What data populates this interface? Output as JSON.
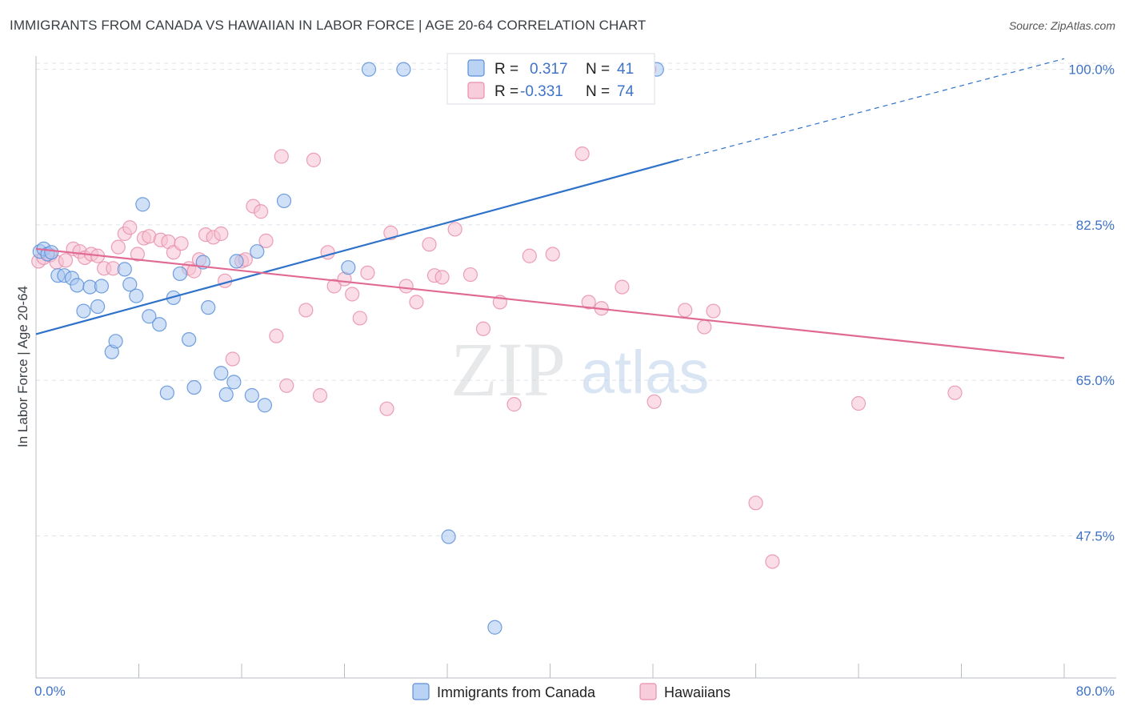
{
  "header": {
    "title": "IMMIGRANTS FROM CANADA VS HAWAIIAN IN LABOR FORCE | AGE 20-64 CORRELATION CHART",
    "source": "Source: ZipAtlas.com"
  },
  "watermark": {
    "zip": "ZIP",
    "atlas": "atlas"
  },
  "colors": {
    "blue_fill": "#a9c7f0",
    "blue_stroke": "#5b8fd8",
    "blue_line": "#2f72c9",
    "pink_fill": "#f6c1d2",
    "pink_stroke": "#e88fac",
    "pink_line": "#e06a93",
    "tick_text": "#3f73c7",
    "grid": "#dde3ea"
  },
  "chart_data": {
    "type": "scatter",
    "title": "IMMIGRANTS FROM CANADA VS HAWAIIAN IN LABOR FORCE | AGE 20-64 CORRELATION CHART",
    "xlabel": "",
    "ylabel": "In Labor Force | Age 20-64",
    "xlim": [
      0,
      80
    ],
    "ylim": [
      31.5,
      101.5
    ],
    "x_tick_labels": [
      "0.0%",
      "80.0%"
    ],
    "y_ticks": [
      47.5,
      65.0,
      82.5,
      100.0
    ],
    "y_tick_labels": [
      "47.5%",
      "65.0%",
      "82.5%",
      "100.0%"
    ],
    "grid": true,
    "legend_placement": "top-center",
    "stats": [
      {
        "r_label": "R =",
        "r_value": "0.317",
        "n_label": "N =",
        "n_value": "41"
      },
      {
        "r_label": "R =",
        "r_value": "-0.331",
        "n_label": "N =",
        "n_value": "74"
      }
    ],
    "series": [
      {
        "name": "Immigrants from Canada",
        "trend": {
          "x": [
            0,
            50
          ],
          "y": [
            70.2,
            89.8
          ],
          "dashed_to": [
            80,
            101.2
          ]
        },
        "points": [
          [
            0.3,
            79.5
          ],
          [
            0.6,
            79.8
          ],
          [
            0.9,
            79.2
          ],
          [
            1.2,
            79.4
          ],
          [
            1.7,
            76.8
          ],
          [
            2.2,
            76.8
          ],
          [
            2.8,
            76.5
          ],
          [
            3.2,
            75.7
          ],
          [
            3.7,
            72.8
          ],
          [
            4.2,
            75.5
          ],
          [
            4.8,
            73.3
          ],
          [
            5.1,
            75.6
          ],
          [
            5.9,
            68.2
          ],
          [
            6.2,
            69.4
          ],
          [
            6.9,
            77.5
          ],
          [
            7.3,
            75.8
          ],
          [
            7.8,
            74.5
          ],
          [
            8.3,
            84.8
          ],
          [
            8.8,
            72.2
          ],
          [
            9.6,
            71.3
          ],
          [
            10.2,
            63.6
          ],
          [
            10.7,
            74.3
          ],
          [
            11.2,
            77.0
          ],
          [
            11.9,
            69.6
          ],
          [
            12.3,
            64.2
          ],
          [
            13.0,
            78.3
          ],
          [
            13.4,
            73.2
          ],
          [
            14.4,
            65.8
          ],
          [
            14.8,
            63.4
          ],
          [
            15.4,
            64.8
          ],
          [
            15.6,
            78.4
          ],
          [
            16.8,
            63.3
          ],
          [
            17.2,
            79.5
          ],
          [
            17.8,
            62.2
          ],
          [
            19.3,
            85.2
          ],
          [
            24.3,
            77.7
          ],
          [
            25.9,
            100.0
          ],
          [
            28.6,
            100.0
          ],
          [
            32.1,
            47.4
          ],
          [
            35.7,
            37.2
          ],
          [
            48.3,
            100.0
          ]
        ]
      },
      {
        "name": "Hawaiians",
        "trend": {
          "x": [
            0,
            80
          ],
          "y": [
            79.8,
            67.5
          ]
        },
        "points": [
          [
            0.2,
            78.4
          ],
          [
            0.6,
            78.8
          ],
          [
            1.1,
            79.1
          ],
          [
            1.6,
            78.3
          ],
          [
            2.3,
            78.5
          ],
          [
            2.9,
            79.8
          ],
          [
            3.4,
            79.5
          ],
          [
            3.8,
            78.8
          ],
          [
            4.3,
            79.2
          ],
          [
            4.8,
            79.0
          ],
          [
            5.3,
            77.6
          ],
          [
            6.0,
            77.6
          ],
          [
            6.4,
            80.0
          ],
          [
            6.9,
            81.5
          ],
          [
            7.3,
            82.2
          ],
          [
            7.9,
            79.2
          ],
          [
            8.4,
            81.0
          ],
          [
            8.8,
            81.2
          ],
          [
            9.7,
            80.8
          ],
          [
            10.3,
            80.6
          ],
          [
            10.7,
            79.4
          ],
          [
            11.3,
            80.4
          ],
          [
            11.9,
            77.6
          ],
          [
            12.3,
            77.3
          ],
          [
            12.7,
            78.6
          ],
          [
            13.2,
            81.4
          ],
          [
            13.8,
            81.1
          ],
          [
            14.4,
            81.5
          ],
          [
            14.7,
            76.2
          ],
          [
            15.3,
            67.4
          ],
          [
            16.0,
            78.4
          ],
          [
            16.3,
            78.6
          ],
          [
            16.9,
            84.6
          ],
          [
            17.5,
            84.0
          ],
          [
            17.9,
            80.7
          ],
          [
            18.7,
            70.0
          ],
          [
            19.1,
            90.2
          ],
          [
            19.5,
            64.4
          ],
          [
            21.0,
            72.9
          ],
          [
            21.6,
            89.8
          ],
          [
            22.1,
            63.3
          ],
          [
            22.7,
            79.4
          ],
          [
            23.2,
            75.6
          ],
          [
            24.0,
            76.4
          ],
          [
            24.6,
            74.7
          ],
          [
            25.2,
            72.0
          ],
          [
            25.8,
            77.1
          ],
          [
            27.3,
            61.8
          ],
          [
            27.6,
            81.6
          ],
          [
            28.8,
            75.6
          ],
          [
            29.6,
            73.8
          ],
          [
            30.6,
            80.3
          ],
          [
            31.0,
            76.8
          ],
          [
            31.6,
            76.6
          ],
          [
            32.6,
            82.0
          ],
          [
            33.8,
            76.9
          ],
          [
            34.8,
            70.8
          ],
          [
            36.1,
            73.8
          ],
          [
            37.2,
            62.3
          ],
          [
            38.4,
            79.0
          ],
          [
            40.2,
            79.2
          ],
          [
            42.5,
            90.5
          ],
          [
            43.0,
            73.8
          ],
          [
            44.0,
            73.1
          ],
          [
            45.6,
            75.5
          ],
          [
            47.7,
            100.0
          ],
          [
            48.1,
            62.6
          ],
          [
            50.5,
            72.9
          ],
          [
            52.0,
            71.0
          ],
          [
            52.7,
            72.8
          ],
          [
            56.0,
            51.2
          ],
          [
            57.3,
            44.6
          ],
          [
            64.0,
            62.4
          ],
          [
            71.5,
            63.6
          ]
        ]
      }
    ]
  }
}
